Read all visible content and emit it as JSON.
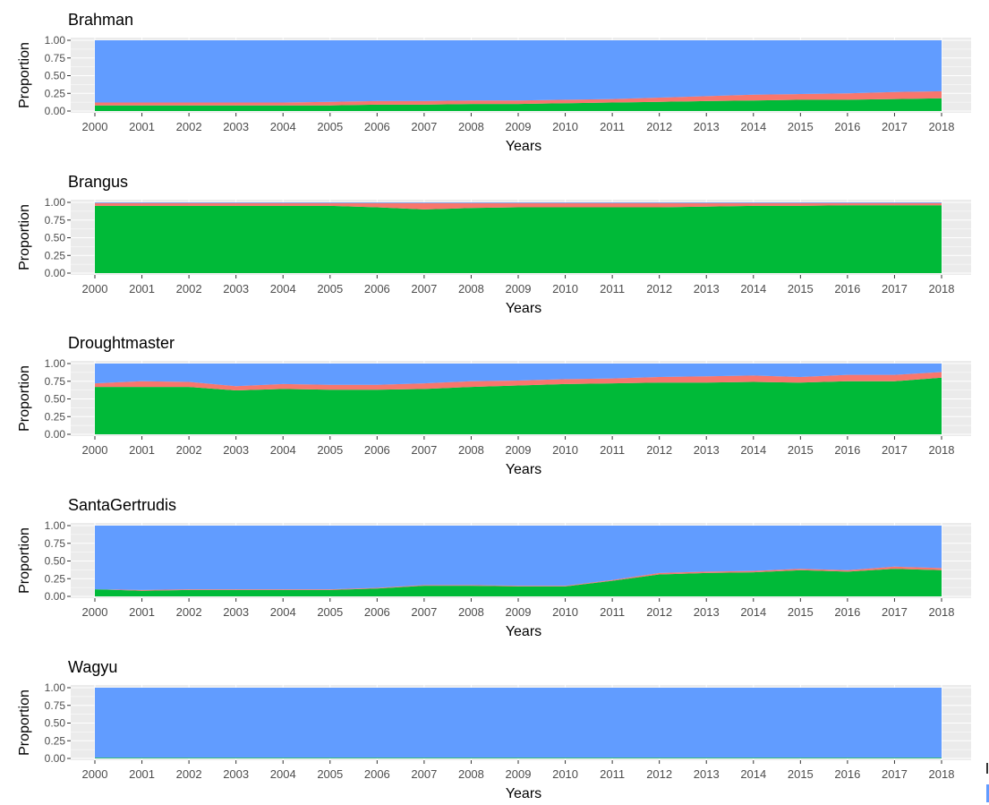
{
  "colors": {
    "green": "#00ba38",
    "red": "#f8766d",
    "blue": "#619cff",
    "panel": "#ebebeb",
    "grid": "#ffffff",
    "text": "#4d4d4d",
    "title": "#000000"
  },
  "chart_data": [
    {
      "type": "area",
      "title": "Brahman",
      "xlabel": "Years",
      "ylabel": "Proportion",
      "ylim": [
        0,
        1
      ],
      "yticks": [
        "0.00",
        "0.25",
        "0.50",
        "0.75",
        "1.00"
      ],
      "x": [
        2000,
        2001,
        2002,
        2003,
        2004,
        2005,
        2006,
        2007,
        2008,
        2009,
        2010,
        2011,
        2012,
        2013,
        2014,
        2015,
        2016,
        2017,
        2018
      ],
      "series": [
        {
          "color": "green",
          "values": [
            0.08,
            0.08,
            0.08,
            0.08,
            0.08,
            0.08,
            0.09,
            0.09,
            0.1,
            0.1,
            0.11,
            0.12,
            0.13,
            0.14,
            0.15,
            0.16,
            0.16,
            0.17,
            0.18
          ]
        },
        {
          "color": "red",
          "values": [
            0.04,
            0.04,
            0.04,
            0.04,
            0.04,
            0.05,
            0.05,
            0.05,
            0.05,
            0.05,
            0.05,
            0.05,
            0.06,
            0.07,
            0.08,
            0.08,
            0.09,
            0.1,
            0.1
          ]
        },
        {
          "color": "blue",
          "values": [
            0.88,
            0.88,
            0.88,
            0.88,
            0.88,
            0.87,
            0.86,
            0.86,
            0.85,
            0.85,
            0.84,
            0.83,
            0.81,
            0.79,
            0.77,
            0.76,
            0.75,
            0.73,
            0.72
          ]
        }
      ]
    },
    {
      "type": "area",
      "title": "Brangus",
      "xlabel": "Years",
      "ylabel": "Proportion",
      "ylim": [
        0,
        1
      ],
      "yticks": [
        "0.00",
        "0.25",
        "0.50",
        "0.75",
        "1.00"
      ],
      "x": [
        2000,
        2001,
        2002,
        2003,
        2004,
        2005,
        2006,
        2007,
        2008,
        2009,
        2010,
        2011,
        2012,
        2013,
        2014,
        2015,
        2016,
        2017,
        2018
      ],
      "series": [
        {
          "color": "green",
          "values": [
            0.95,
            0.95,
            0.95,
            0.95,
            0.95,
            0.95,
            0.93,
            0.9,
            0.92,
            0.93,
            0.93,
            0.93,
            0.93,
            0.94,
            0.95,
            0.95,
            0.96,
            0.96,
            0.96
          ]
        },
        {
          "color": "red",
          "values": [
            0.04,
            0.04,
            0.04,
            0.04,
            0.04,
            0.04,
            0.06,
            0.09,
            0.07,
            0.06,
            0.06,
            0.06,
            0.06,
            0.05,
            0.04,
            0.04,
            0.03,
            0.03,
            0.03
          ]
        },
        {
          "color": "blue",
          "values": [
            0.01,
            0.01,
            0.01,
            0.01,
            0.01,
            0.01,
            0.01,
            0.01,
            0.01,
            0.01,
            0.01,
            0.01,
            0.01,
            0.01,
            0.01,
            0.01,
            0.01,
            0.01,
            0.01
          ]
        }
      ]
    },
    {
      "type": "area",
      "title": "Droughtmaster",
      "xlabel": "Years",
      "ylabel": "Proportion",
      "ylim": [
        0,
        1
      ],
      "yticks": [
        "0.00",
        "0.25",
        "0.50",
        "0.75",
        "1.00"
      ],
      "x": [
        2000,
        2001,
        2002,
        2003,
        2004,
        2005,
        2006,
        2007,
        2008,
        2009,
        2010,
        2011,
        2012,
        2013,
        2014,
        2015,
        2016,
        2017,
        2018
      ],
      "series": [
        {
          "color": "green",
          "values": [
            0.67,
            0.67,
            0.67,
            0.62,
            0.64,
            0.63,
            0.63,
            0.64,
            0.67,
            0.69,
            0.71,
            0.72,
            0.73,
            0.73,
            0.74,
            0.73,
            0.75,
            0.75,
            0.8
          ]
        },
        {
          "color": "red",
          "values": [
            0.05,
            0.08,
            0.07,
            0.06,
            0.07,
            0.07,
            0.07,
            0.08,
            0.08,
            0.07,
            0.07,
            0.07,
            0.08,
            0.09,
            0.09,
            0.08,
            0.09,
            0.09,
            0.08
          ]
        },
        {
          "color": "blue",
          "values": [
            0.28,
            0.25,
            0.26,
            0.32,
            0.29,
            0.3,
            0.3,
            0.28,
            0.25,
            0.24,
            0.22,
            0.21,
            0.19,
            0.18,
            0.17,
            0.19,
            0.16,
            0.16,
            0.12
          ]
        }
      ]
    },
    {
      "type": "area",
      "title": "SantaGertrudis",
      "xlabel": "Years",
      "ylabel": "Proportion",
      "ylim": [
        0,
        1
      ],
      "yticks": [
        "0.00",
        "0.25",
        "0.50",
        "0.75",
        "1.00"
      ],
      "x": [
        2000,
        2001,
        2002,
        2003,
        2004,
        2005,
        2006,
        2007,
        2008,
        2009,
        2010,
        2011,
        2012,
        2013,
        2014,
        2015,
        2016,
        2017,
        2018
      ],
      "series": [
        {
          "color": "green",
          "values": [
            0.1,
            0.08,
            0.09,
            0.09,
            0.09,
            0.09,
            0.11,
            0.15,
            0.15,
            0.14,
            0.14,
            0.22,
            0.31,
            0.33,
            0.34,
            0.37,
            0.35,
            0.39,
            0.37
          ]
        },
        {
          "color": "red",
          "values": [
            0.0,
            0.01,
            0.01,
            0.01,
            0.01,
            0.01,
            0.01,
            0.01,
            0.01,
            0.01,
            0.01,
            0.01,
            0.02,
            0.02,
            0.02,
            0.02,
            0.02,
            0.03,
            0.03
          ]
        },
        {
          "color": "blue",
          "values": [
            0.9,
            0.91,
            0.9,
            0.9,
            0.9,
            0.9,
            0.88,
            0.84,
            0.84,
            0.85,
            0.85,
            0.77,
            0.67,
            0.65,
            0.64,
            0.61,
            0.63,
            0.58,
            0.6
          ]
        }
      ]
    },
    {
      "type": "area",
      "title": "Wagyu",
      "xlabel": "Years",
      "ylabel": "Proportion",
      "ylim": [
        0,
        1
      ],
      "yticks": [
        "0.00",
        "0.25",
        "0.50",
        "0.75",
        "1.00"
      ],
      "x": [
        2000,
        2001,
        2002,
        2003,
        2004,
        2005,
        2006,
        2007,
        2008,
        2009,
        2010,
        2011,
        2012,
        2013,
        2014,
        2015,
        2016,
        2017,
        2018
      ],
      "series": [
        {
          "color": "green",
          "values": [
            0.01,
            0.01,
            0.01,
            0.01,
            0.01,
            0.01,
            0.01,
            0.01,
            0.01,
            0.01,
            0.01,
            0.01,
            0.01,
            0.01,
            0.01,
            0.01,
            0.01,
            0.01,
            0.01
          ]
        },
        {
          "color": "red",
          "values": [
            0.0,
            0.0,
            0.0,
            0.0,
            0.0,
            0.0,
            0.0,
            0.0,
            0.0,
            0.0,
            0.0,
            0.0,
            0.0,
            0.0,
            0.0,
            0.0,
            0.0,
            0.0,
            0.0
          ]
        },
        {
          "color": "blue",
          "values": [
            0.99,
            0.99,
            0.99,
            0.99,
            0.99,
            0.99,
            0.99,
            0.99,
            0.99,
            0.99,
            0.99,
            0.99,
            0.99,
            0.99,
            0.99,
            0.99,
            0.99,
            0.99,
            0.99
          ]
        }
      ]
    }
  ]
}
